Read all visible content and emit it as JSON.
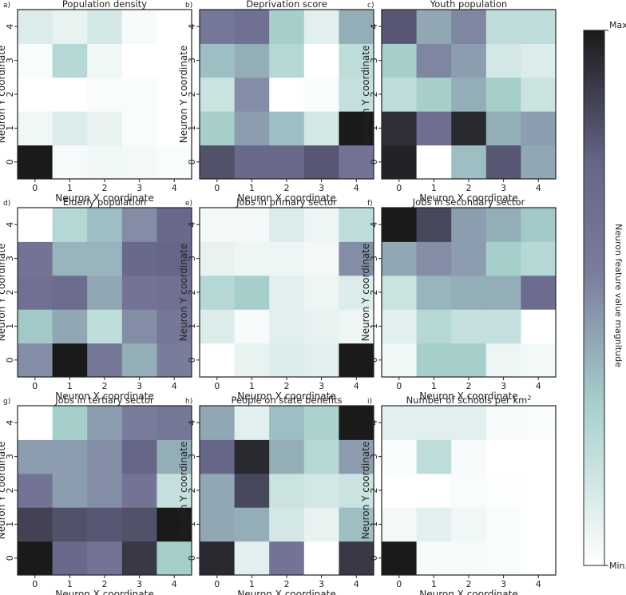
{
  "figure": {
    "colorbar": {
      "label": "Neuron feature value magnitude",
      "max_label": "Max",
      "min_label": "Min.",
      "colors": [
        "#ffffff",
        "#a6cfcc",
        "#7a7c9b",
        "#666689",
        "#1a1a1a"
      ]
    },
    "xlabel": "Neuron X coordinate",
    "ylabel": "Neuron Y coordinate",
    "tick_labels": [
      "0",
      "1",
      "2",
      "3",
      "4"
    ]
  },
  "chart_data": [
    {
      "type": "heatmap",
      "panel_label": "a)",
      "title": "Population density",
      "x": [
        0,
        1,
        2,
        3,
        4
      ],
      "y": [
        0,
        1,
        2,
        3,
        4
      ],
      "values": [
        [
          1.0,
          0.03,
          0.05,
          0.04,
          0.02
        ],
        [
          0.05,
          0.12,
          0.08,
          0.02,
          0.0
        ],
        [
          0.0,
          0.0,
          0.02,
          0.02,
          0.0
        ],
        [
          0.02,
          0.25,
          0.05,
          0.0,
          0.0
        ],
        [
          0.12,
          0.08,
          0.15,
          0.03,
          0.0
        ]
      ]
    },
    {
      "type": "heatmap",
      "panel_label": "b)",
      "title": "Deprivation score",
      "x": [
        0,
        1,
        2,
        3,
        4
      ],
      "y": [
        0,
        1,
        2,
        3,
        4
      ],
      "values": [
        [
          0.82,
          0.72,
          0.72,
          0.8,
          0.62
        ],
        [
          0.3,
          0.45,
          0.35,
          0.15,
          1.0
        ],
        [
          0.18,
          0.5,
          0.0,
          0.02,
          0.2
        ],
        [
          0.35,
          0.4,
          0.25,
          0.0,
          0.22
        ],
        [
          0.6,
          0.65,
          0.3,
          0.1,
          0.4
        ]
      ]
    },
    {
      "type": "heatmap",
      "panel_label": "c)",
      "title": "Youth population",
      "x": [
        0,
        1,
        2,
        3,
        4
      ],
      "y": [
        0,
        1,
        2,
        3,
        4
      ],
      "values": [
        [
          0.97,
          0.0,
          0.35,
          0.8,
          0.42
        ],
        [
          0.93,
          0.66,
          0.95,
          0.4,
          0.45
        ],
        [
          0.22,
          0.3,
          0.4,
          0.3,
          0.18
        ],
        [
          0.3,
          0.52,
          0.45,
          0.15,
          0.12
        ],
        [
          0.8,
          0.42,
          0.52,
          0.22,
          0.22
        ]
      ]
    },
    {
      "type": "heatmap",
      "panel_label": "d)",
      "title": "Elderly population",
      "x": [
        0,
        1,
        2,
        3,
        4
      ],
      "y": [
        0,
        1,
        2,
        3,
        4
      ],
      "values": [
        [
          0.5,
          1.0,
          0.6,
          0.4,
          0.55
        ],
        [
          0.32,
          0.42,
          0.22,
          0.5,
          0.6
        ],
        [
          0.65,
          0.7,
          0.42,
          0.62,
          0.65
        ],
        [
          0.62,
          0.38,
          0.38,
          0.72,
          0.75
        ],
        [
          0.0,
          0.25,
          0.35,
          0.5,
          0.72
        ]
      ]
    },
    {
      "type": "heatmap",
      "panel_label": "e)",
      "title": "Jobs in primary sector",
      "x": [
        0,
        1,
        2,
        3,
        4
      ],
      "y": [
        0,
        1,
        2,
        3,
        4
      ],
      "values": [
        [
          0.0,
          0.08,
          0.12,
          0.1,
          1.0
        ],
        [
          0.12,
          0.03,
          0.1,
          0.08,
          0.06
        ],
        [
          0.25,
          0.3,
          0.1,
          0.06,
          0.12
        ],
        [
          0.08,
          0.06,
          0.06,
          0.04,
          0.5
        ],
        [
          0.04,
          0.04,
          0.12,
          0.06,
          0.22
        ]
      ]
    },
    {
      "type": "heatmap",
      "panel_label": "f)",
      "title": "Jobs in secondary sector",
      "x": [
        0,
        1,
        2,
        3,
        4
      ],
      "y": [
        0,
        1,
        2,
        3,
        4
      ],
      "values": [
        [
          0.05,
          0.3,
          0.3,
          0.06,
          0.04
        ],
        [
          0.1,
          0.25,
          0.2,
          0.2,
          0.0
        ],
        [
          0.18,
          0.38,
          0.4,
          0.4,
          0.7
        ],
        [
          0.42,
          0.5,
          0.45,
          0.3,
          0.25
        ],
        [
          1.0,
          0.85,
          0.45,
          0.4,
          0.32
        ]
      ]
    },
    {
      "type": "heatmap",
      "panel_label": "g)",
      "title": "Jobs in tertiary sector",
      "x": [
        0,
        1,
        2,
        3,
        4
      ],
      "y": [
        0,
        1,
        2,
        3,
        4
      ],
      "values": [
        [
          1.0,
          0.72,
          0.62,
          0.9,
          0.3
        ],
        [
          0.87,
          0.82,
          0.8,
          0.82,
          1.0
        ],
        [
          0.62,
          0.45,
          0.5,
          0.62,
          0.2
        ],
        [
          0.45,
          0.45,
          0.5,
          0.75,
          0.4
        ],
        [
          0.0,
          0.3,
          0.45,
          0.55,
          0.6
        ]
      ]
    },
    {
      "type": "heatmap",
      "panel_label": "h)",
      "title": "People on state benefits",
      "x": [
        0,
        1,
        2,
        3,
        4
      ],
      "y": [
        0,
        1,
        2,
        3,
        4
      ],
      "values": [
        [
          0.95,
          0.1,
          0.62,
          0.0,
          0.9
        ],
        [
          0.42,
          0.4,
          0.15,
          0.08,
          0.35
        ],
        [
          0.42,
          0.85,
          0.18,
          0.15,
          0.18
        ],
        [
          0.75,
          0.95,
          0.4,
          0.25,
          0.45
        ],
        [
          0.42,
          0.1,
          0.35,
          0.28,
          1.0
        ]
      ]
    },
    {
      "type": "heatmap",
      "panel_label": "i)",
      "title": "Number of schools per km",
      "title_sup": "2",
      "x": [
        0,
        1,
        2,
        3,
        4
      ],
      "y": [
        0,
        1,
        2,
        3,
        4
      ],
      "values": [
        [
          1.0,
          0.03,
          0.03,
          0.02,
          0.0
        ],
        [
          0.04,
          0.1,
          0.05,
          0.02,
          0.0
        ],
        [
          0.0,
          0.0,
          0.02,
          0.01,
          0.0
        ],
        [
          0.02,
          0.22,
          0.03,
          0.0,
          0.0
        ],
        [
          0.1,
          0.1,
          0.1,
          0.03,
          0.02
        ]
      ]
    }
  ]
}
